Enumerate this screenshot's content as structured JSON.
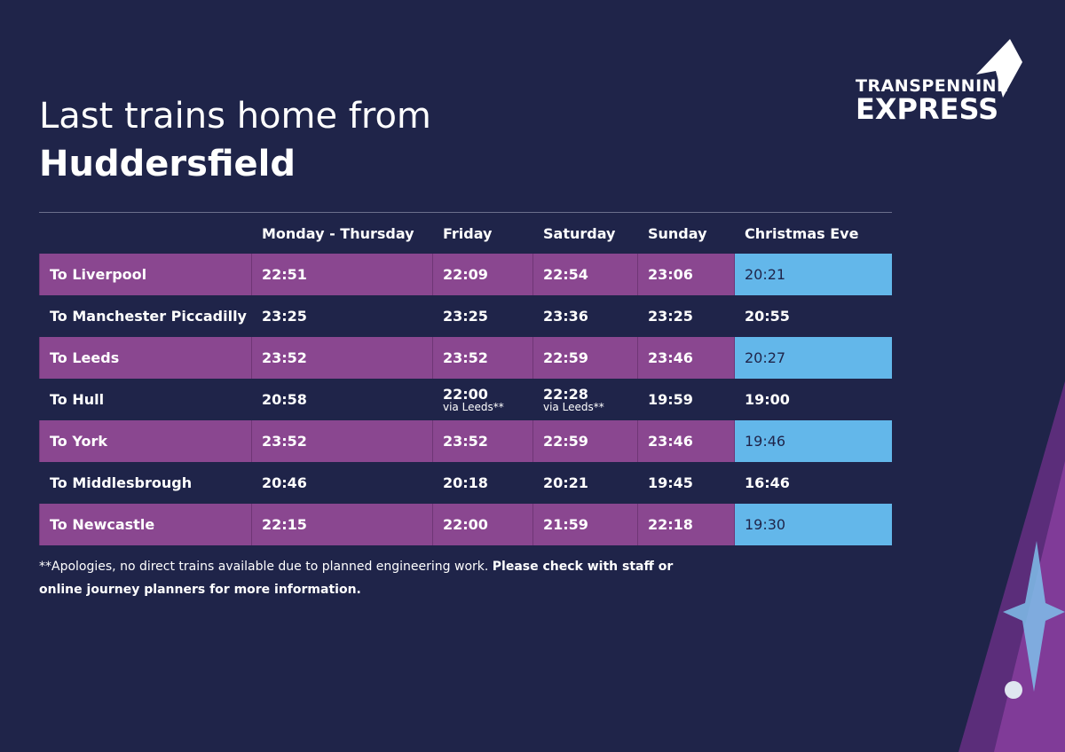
{
  "logo": {
    "line1": "TRANSPENNINE",
    "line2": "EXPRESS"
  },
  "header": {
    "title_line1": "Last trains home from",
    "title_line2": "Huddersfield"
  },
  "table": {
    "columns": [
      "Monday - Thursday",
      "Friday",
      "Saturday",
      "Sunday",
      "Christmas Eve"
    ],
    "rows": [
      {
        "destination": "To Liverpool",
        "times": [
          "22:51",
          "22:09",
          "22:54",
          "23:06",
          "20:21"
        ]
      },
      {
        "destination": "To Manchester Piccadilly",
        "times": [
          "23:25",
          "23:25",
          "23:36",
          "23:25",
          "20:55"
        ]
      },
      {
        "destination": "To Leeds",
        "times": [
          "23:52",
          "23:52",
          "22:59",
          "23:46",
          "20:27"
        ]
      },
      {
        "destination": "To Hull",
        "times": [
          "20:58",
          {
            "time": "22:00",
            "note": "via Leeds**"
          },
          {
            "time": "22:28",
            "note": "via Leeds**"
          },
          "19:59",
          "19:00"
        ]
      },
      {
        "destination": "To York",
        "times": [
          "23:52",
          "23:52",
          "22:59",
          "23:46",
          "19:46"
        ]
      },
      {
        "destination": "To Middlesbrough",
        "times": [
          "20:46",
          "20:18",
          "20:21",
          "19:45",
          "16:46"
        ]
      },
      {
        "destination": "To Newcastle",
        "times": [
          "22:15",
          "22:00",
          "21:59",
          "22:18",
          "19:30"
        ]
      }
    ]
  },
  "footnote": {
    "text": "**Apologies, no direct trains available due to planned engineering work.",
    "bold": "Please check with staff or online journey planners for more information."
  }
}
